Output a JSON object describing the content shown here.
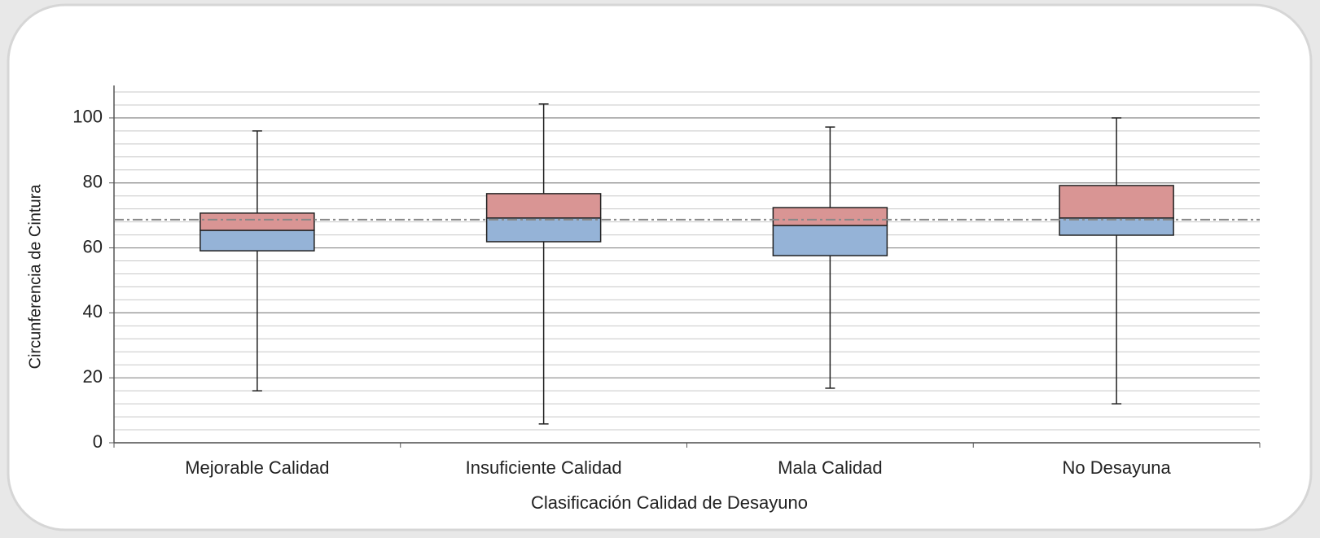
{
  "chart_data": {
    "type": "box",
    "xlabel": "Clasificación Calidad de Desayuno",
    "ylabel": "Circunferencia de Cintura",
    "categories": [
      "Mejorable Calidad",
      "Insuficiente Calidad",
      "Mala Calidad",
      "No Desayuna"
    ],
    "boxes": [
      {
        "min": 16,
        "q1": 59.1,
        "median": 65.4,
        "q3": 70.7,
        "max": 96
      },
      {
        "min": 5.8,
        "q1": 61.9,
        "median": 69.2,
        "q3": 76.7,
        "max": 104.3
      },
      {
        "min": 16.8,
        "q1": 57.6,
        "median": 66.9,
        "q3": 72.4,
        "max": 97.2
      },
      {
        "min": 12,
        "q1": 63.9,
        "median": 69.2,
        "q3": 79.2,
        "max": 100
      }
    ],
    "lower_color": "#95b3d7",
    "upper_color": "#d99594",
    "reference_line": 68.7,
    "ylim": [
      0,
      110
    ],
    "yticks": [
      0,
      20,
      40,
      60,
      80,
      100
    ],
    "minor_grid": [
      4,
      8,
      12,
      16,
      24,
      28,
      32,
      36,
      44,
      48,
      52,
      56,
      64,
      68,
      72,
      76,
      84,
      88,
      92,
      96,
      104,
      108
    ],
    "grid": true
  }
}
